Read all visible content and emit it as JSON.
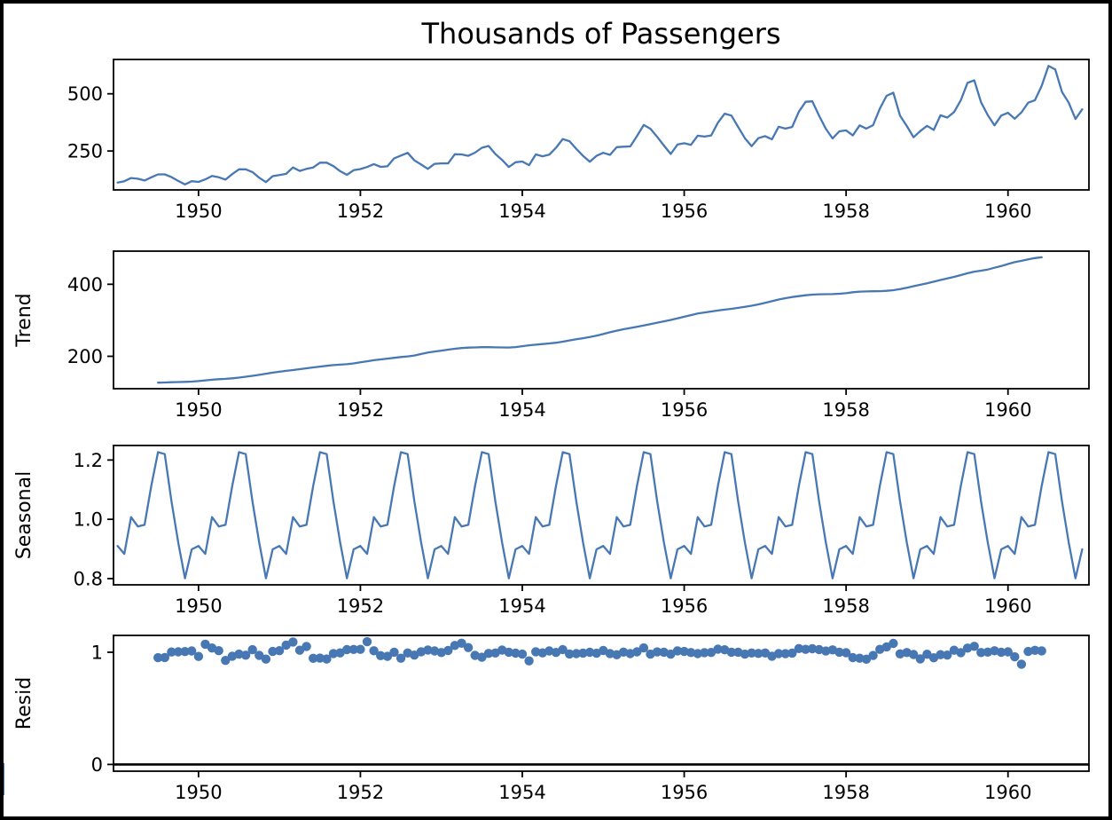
{
  "figure": {
    "colors": {
      "series": "#4878b4",
      "axes": "#000000",
      "background": "#ffffff",
      "border": "#000000",
      "zero_line": "#000000"
    }
  },
  "x_axis": {
    "xlim": [
      1948.95,
      1961.0
    ],
    "xtick_values": [
      1950,
      1952,
      1954,
      1956,
      1958,
      1960
    ],
    "xtick_labels": [
      "1950",
      "1952",
      "1954",
      "1956",
      "1958",
      "1960"
    ]
  },
  "chart_data": [
    {
      "panel": "observed",
      "type": "line",
      "title": "Thousands of Passengers",
      "frequency": "monthly",
      "x_start_year": 1949,
      "values": [
        112,
        118,
        132,
        129,
        121,
        135,
        148,
        148,
        136,
        119,
        104,
        118,
        115,
        126,
        141,
        135,
        125,
        149,
        170,
        170,
        158,
        133,
        114,
        140,
        145,
        150,
        178,
        163,
        172,
        178,
        199,
        199,
        184,
        162,
        146,
        166,
        171,
        180,
        193,
        181,
        183,
        218,
        230,
        242,
        209,
        191,
        172,
        194,
        196,
        196,
        236,
        235,
        229,
        243,
        264,
        272,
        237,
        211,
        180,
        201,
        204,
        188,
        235,
        227,
        234,
        264,
        302,
        293,
        259,
        229,
        203,
        229,
        242,
        233,
        267,
        269,
        270,
        315,
        364,
        347,
        312,
        274,
        237,
        278,
        284,
        277,
        317,
        313,
        318,
        374,
        413,
        405,
        355,
        306,
        271,
        306,
        315,
        301,
        356,
        348,
        355,
        422,
        465,
        467,
        404,
        347,
        305,
        336,
        340,
        318,
        362,
        348,
        363,
        435,
        491,
        505,
        404,
        359,
        310,
        337,
        360,
        342,
        406,
        396,
        420,
        472,
        548,
        559,
        463,
        407,
        362,
        405,
        417,
        391,
        419,
        461,
        472,
        535,
        622,
        606,
        508,
        461,
        390,
        432
      ],
      "ylim": [
        80,
        650
      ],
      "ytick_values": [
        250,
        500
      ],
      "ytick_labels": [
        "250",
        "500"
      ]
    },
    {
      "panel": "trend",
      "type": "line",
      "ylabel": "Trend",
      "derivation": "centered 12-month moving average of observed",
      "window": 12,
      "ylim": [
        110,
        492
      ],
      "ytick_values": [
        200,
        400
      ],
      "ytick_labels": [
        "200",
        "400"
      ]
    },
    {
      "panel": "seasonal",
      "type": "line",
      "ylabel": "Seasonal",
      "model": "multiplicative",
      "monthly_indices": [
        0.9102,
        0.8836,
        1.0074,
        0.9759,
        0.9814,
        1.1128,
        1.2266,
        1.2199,
        1.0605,
        0.9218,
        0.8012,
        0.8988
      ],
      "ylim": [
        0.779,
        1.249
      ],
      "ytick_values": [
        0.8,
        1.0,
        1.2
      ],
      "ytick_labels": [
        "0.8",
        "1.0",
        "1.2"
      ]
    },
    {
      "panel": "resid",
      "type": "scatter",
      "ylabel": "Resid",
      "derivation": "observed / (trend * seasonal)",
      "zero_line": 0,
      "ylim": [
        -0.06,
        1.15
      ],
      "ytick_values": [
        0,
        1
      ],
      "ytick_labels": [
        "0",
        "1"
      ]
    }
  ]
}
